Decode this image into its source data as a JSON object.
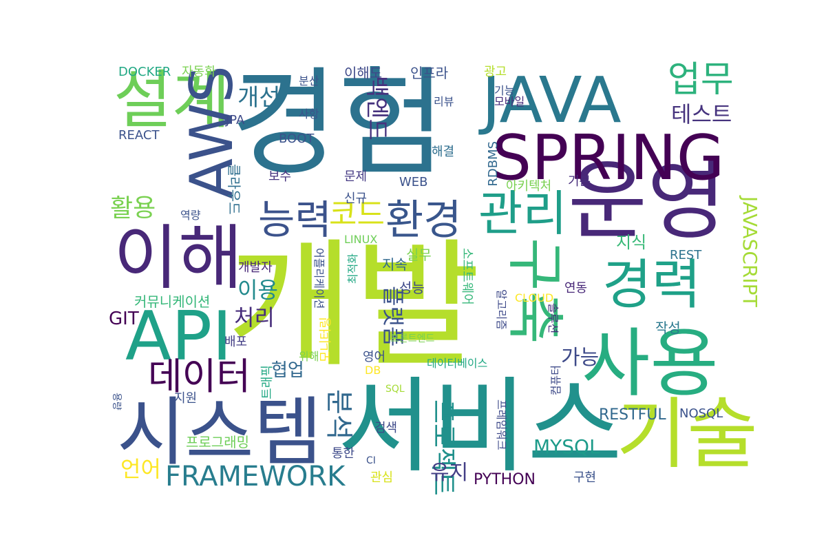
{
  "words": [
    {
      "text": "개발",
      "weight": 100,
      "color": "#b5de2b"
    },
    {
      "text": "경험",
      "weight": 96,
      "color": "#2c728e"
    },
    {
      "text": "서비스",
      "weight": 82,
      "color": "#21918c"
    },
    {
      "text": "시스템",
      "weight": 78,
      "color": "#3b528b"
    },
    {
      "text": "운영",
      "weight": 74,
      "color": "#482878"
    },
    {
      "text": "JAVA",
      "weight": 70,
      "color": "#2a788e"
    },
    {
      "text": "SPRING",
      "weight": 66,
      "color": "#440154"
    },
    {
      "text": "사용",
      "weight": 62,
      "color": "#27ad81"
    },
    {
      "text": "설계",
      "weight": 60,
      "color": "#6ece58"
    },
    {
      "text": "이해",
      "weight": 58,
      "color": "#482878"
    },
    {
      "text": "AWS",
      "weight": 56,
      "color": "#3b528b"
    },
    {
      "text": "API",
      "weight": 54,
      "color": "#1fa188"
    },
    {
      "text": "기술",
      "weight": 52,
      "color": "#b5de2b"
    },
    {
      "text": "경력",
      "weight": 50,
      "color": "#1fa188"
    },
    {
      "text": "구축",
      "weight": 46,
      "color": "#35b779"
    },
    {
      "text": "관리",
      "weight": 44,
      "color": "#1f9e89"
    },
    {
      "text": "환경",
      "weight": 42,
      "color": "#39568c"
    },
    {
      "text": "능력",
      "weight": 40,
      "color": "#3b528b"
    },
    {
      "text": "데이터",
      "weight": 38,
      "color": "#440154"
    },
    {
      "text": "업무",
      "weight": 36,
      "color": "#2db27d"
    },
    {
      "text": "FRAMEWORK",
      "weight": 34,
      "color": "#287d8e"
    },
    {
      "text": "코드",
      "weight": 33,
      "color": "#d8e219"
    },
    {
      "text": "활용",
      "weight": 32,
      "color": "#7ad151"
    },
    {
      "text": "테스트",
      "weight": 31,
      "color": "#46337e"
    },
    {
      "text": "백엔드",
      "weight": 30,
      "color": "#46327e"
    },
    {
      "text": "개선",
      "weight": 30,
      "color": "#2c728e"
    },
    {
      "text": "플랫폼",
      "weight": 30,
      "color": "#3b528b"
    },
    {
      "text": "분석",
      "weight": 29,
      "color": "#31688e"
    },
    {
      "text": "프로젝트",
      "weight": 29,
      "color": "#21918c"
    },
    {
      "text": "처리",
      "weight": 28,
      "color": "#472d7b"
    },
    {
      "text": "이용",
      "weight": 28,
      "color": "#238a8d"
    },
    {
      "text": "JAVASCRIPT",
      "weight": 28,
      "color": "#a5db36"
    },
    {
      "text": "MYSQL",
      "weight": 27,
      "color": "#1e9b8a"
    },
    {
      "text": "가능",
      "weight": 27,
      "color": "#3e4a89"
    },
    {
      "text": "언어",
      "weight": 26,
      "color": "#fde725"
    },
    {
      "text": "협업",
      "weight": 26,
      "color": "#31688e"
    },
    {
      "text": "유지",
      "weight": 25,
      "color": "#433e85"
    },
    {
      "text": "지식",
      "weight": 24,
      "color": "#38b977"
    },
    {
      "text": "GIT",
      "weight": 24,
      "color": "#440154"
    },
    {
      "text": "RESTFUL",
      "weight": 23,
      "color": "#31688e"
    },
    {
      "text": "PYTHON",
      "weight": 22,
      "color": "#440154"
    },
    {
      "text": "클라우드",
      "weight": 22,
      "color": "#2e6e8e"
    },
    {
      "text": "커뮤니케이션",
      "weight": 21,
      "color": "#35b779"
    },
    {
      "text": "프로그래밍",
      "weight": 21,
      "color": "#6ece58"
    },
    {
      "text": "인프라",
      "weight": 20,
      "color": "#3b528b"
    },
    {
      "text": "이해도",
      "weight": 20,
      "color": "#3e4989"
    },
    {
      "text": "작성",
      "weight": 20,
      "color": "#2a788e"
    },
    {
      "text": "성능",
      "weight": 20,
      "color": "#3e4989"
    },
    {
      "text": "지속",
      "weight": 20,
      "color": "#31688e"
    },
    {
      "text": "실무",
      "weight": 20,
      "color": "#7ad151"
    },
    {
      "text": "문제",
      "weight": 19,
      "color": "#443983"
    },
    {
      "text": "보수",
      "weight": 19,
      "color": "#46337e"
    },
    {
      "text": "WEB",
      "weight": 19,
      "color": "#3b528b"
    },
    {
      "text": "REACT",
      "weight": 19,
      "color": "#3b528b"
    },
    {
      "text": "BOOT",
      "weight": 19,
      "color": "#3b528b"
    },
    {
      "text": "DOCKER",
      "weight": 19,
      "color": "#22a884"
    },
    {
      "text": "자동화",
      "weight": 19,
      "color": "#7ad151"
    },
    {
      "text": "JPA",
      "weight": 18,
      "color": "#3e4a89"
    },
    {
      "text": "해결",
      "weight": 18,
      "color": "#2e6e8e"
    },
    {
      "text": "RDBMS",
      "weight": 18,
      "color": "#31688e"
    },
    {
      "text": "개발자",
      "weight": 18,
      "color": "#482878"
    },
    {
      "text": "배포",
      "weight": 18,
      "color": "#433e85"
    },
    {
      "text": "영어",
      "weight": 18,
      "color": "#3b528b"
    },
    {
      "text": "검색",
      "weight": 18,
      "color": "#3e4a89"
    },
    {
      "text": "관심",
      "weight": 18,
      "color": "#d8e219"
    },
    {
      "text": "구현",
      "weight": 17,
      "color": "#3b528b"
    },
    {
      "text": "연동",
      "weight": 17,
      "color": "#482878"
    },
    {
      "text": "NOSQL",
      "weight": 17,
      "color": "#3b528b"
    },
    {
      "text": "REST",
      "weight": 16,
      "color": "#2c728e"
    },
    {
      "text": "LINUX",
      "weight": 16,
      "color": "#6ece58"
    },
    {
      "text": "지원",
      "weight": 16,
      "color": "#3b528b"
    },
    {
      "text": "통한",
      "weight": 16,
      "color": "#3e4a89"
    },
    {
      "text": "신규",
      "weight": 16,
      "color": "#3b528b"
    },
    {
      "text": "기본",
      "weight": 16,
      "color": "#472d7b"
    },
    {
      "text": "아키텍처",
      "weight": 16,
      "color": "#7ad151"
    },
    {
      "text": "역량",
      "weight": 16,
      "color": "#3b528b"
    },
    {
      "text": "광고",
      "weight": 16,
      "color": "#b5de2b"
    },
    {
      "text": "기능",
      "weight": 16,
      "color": "#3b528b"
    },
    {
      "text": "모바일",
      "weight": 16,
      "color": "#472d7b"
    },
    {
      "text": "리뷰",
      "weight": 15,
      "color": "#3b528b"
    },
    {
      "text": "분산",
      "weight": 15,
      "color": "#3b528b"
    },
    {
      "text": "사항",
      "weight": 15,
      "color": "#3b528b"
    },
    {
      "text": "CLOUD",
      "weight": 15,
      "color": "#fde725"
    },
    {
      "text": "DB",
      "weight": 15,
      "color": "#fde725"
    },
    {
      "text": "SQL",
      "weight": 15,
      "color": "#a5db36"
    },
    {
      "text": "CI",
      "weight": 14,
      "color": "#3b528b"
    },
    {
      "text": "위해",
      "weight": 14,
      "color": "#7ad151"
    },
    {
      "text": "용량",
      "weight": 14,
      "color": "#3b528b"
    },
    {
      "text": "트래픽",
      "weight": 16,
      "color": "#22a884"
    },
    {
      "text": "모니터링",
      "weight": 16,
      "color": "#fde725"
    },
    {
      "text": "어플리케이션",
      "weight": 16,
      "color": "#3b528b"
    },
    {
      "text": "최적화",
      "weight": 16,
      "color": "#22a884"
    },
    {
      "text": "소프트웨어",
      "weight": 17,
      "color": "#35b779"
    },
    {
      "text": "알고리즘",
      "weight": 16,
      "color": "#3e4a89"
    },
    {
      "text": "솔루션",
      "weight": 16,
      "color": "#472d7b"
    },
    {
      "text": "컴퓨터",
      "weight": 16,
      "color": "#3e4a89"
    },
    {
      "text": "프레임워크",
      "weight": 16,
      "color": "#3e4a89"
    },
    {
      "text": "프론트엔드",
      "weight": 16,
      "color": "#7ad151"
    },
    {
      "text": "데이터베이스",
      "weight": 16,
      "color": "#22a884"
    }
  ]
}
